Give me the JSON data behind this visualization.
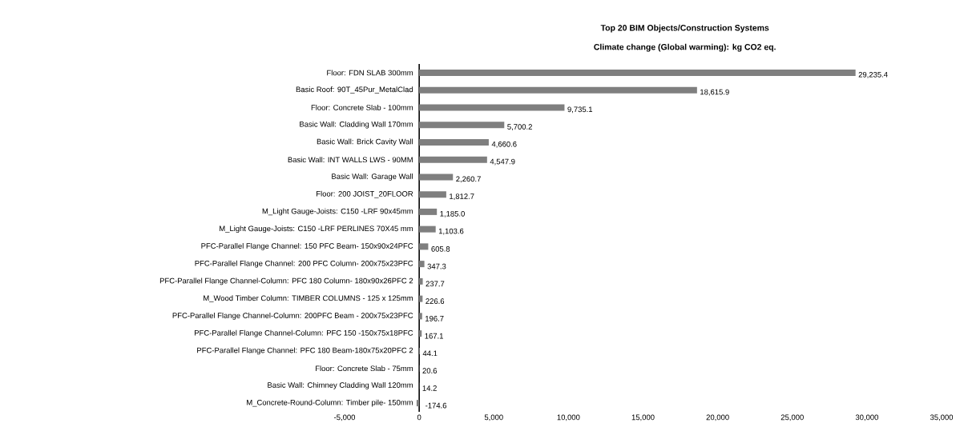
{
  "chart_data": {
    "type": "bar",
    "orientation": "horizontal",
    "title": "Top 20 BIM Objects/Construction Systems",
    "subtitle": "Climate change (Global warming): kg CO2 eq.",
    "categories": [
      "Floor: FDN SLAB 300mm",
      "Basic Roof: 90T_45Pur_MetalClad",
      "Floor: Concrete Slab - 100mm",
      "Basic Wall: Cladding Wall 170mm",
      "Basic Wall: Brick Cavity Wall",
      "Basic Wall: INT WALLS LWS - 90MM",
      "Basic Wall: Garage Wall",
      "Floor: 200 JOIST_20FLOOR",
      "M_Light Gauge-Joists: C150 -LRF 90x45mm",
      "M_Light Gauge-Joists: C150 -LRF PERLINES 70X45 mm",
      "PFC-Parallel Flange Channel: 150 PFC Beam- 150x90x24PFC",
      "PFC-Parallel Flange Channel: 200 PFC Column- 200x75x23PFC",
      "PFC-Parallel Flange Channel-Column: PFC 180 Column- 180x90x26PFC 2",
      "M_Wood Timber Column: TIMBER COLUMNS - 125 x 125mm",
      "PFC-Parallel Flange Channel-Column: 200PFC Beam - 200x75x23PFC",
      "PFC-Parallel Flange Channel-Column: PFC 150 -150x75x18PFC",
      "PFC-Parallel Flange Channel: PFC 180 Beam-180x75x20PFC 2",
      "Floor: Concrete Slab - 75mm",
      "Basic Wall: Chimney Cladding Wall 120mm",
      "M_Concrete-Round-Column: Timber pile- 150mm"
    ],
    "values": [
      29235.4,
      18615.9,
      9735.1,
      5700.2,
      4660.6,
      4547.9,
      2260.7,
      1812.7,
      1185.0,
      1103.6,
      605.8,
      347.3,
      237.7,
      226.6,
      196.7,
      167.1,
      44.1,
      20.6,
      14.2,
      -174.6
    ],
    "value_labels": [
      "29,235.4",
      "18,615.9",
      "9,735.1",
      "5,700.2",
      "4,660.6",
      "4,547.9",
      "2,260.7",
      "1,812.7",
      "1,185.0",
      "1,103.6",
      "605.8",
      "347.3",
      "237.7",
      "226.6",
      "196.7",
      "167.1",
      "44.1",
      "20.6",
      "14.2",
      "-174.6"
    ],
    "color": "#7f7f7f",
    "xlim": [
      -5000,
      35000
    ],
    "xticks": [
      {
        "value": -5000,
        "label": "-5,000"
      },
      0,
      {
        "value": 5000,
        "label": "5,000"
      },
      {
        "value": 10000,
        "label": "10,000"
      },
      {
        "value": 15000,
        "label": "15,000"
      },
      {
        "value": 20000,
        "label": "20,000"
      },
      {
        "value": 25000,
        "label": "25,000"
      },
      {
        "value": 30000,
        "label": "30,000"
      },
      {
        "value": 35000,
        "label": "35,000"
      }
    ]
  }
}
